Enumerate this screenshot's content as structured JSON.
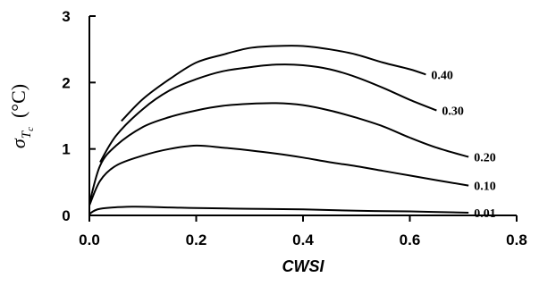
{
  "chart_data": {
    "type": "line",
    "xlabel": "CWSI",
    "ylabel": "σ_Tc (°C)",
    "ylabel_parts": {
      "symbol": "σ",
      "sub": "T",
      "subsub": "c",
      "unit": "(°C)"
    },
    "xlim": [
      0.0,
      0.8
    ],
    "ylim": [
      0,
      3
    ],
    "x_ticks": [
      0.0,
      0.2,
      0.4,
      0.6,
      0.8
    ],
    "x_tick_labels": [
      "0.0",
      "0.2",
      "0.4",
      "0.6",
      "0.8"
    ],
    "y_ticks": [
      0,
      1,
      2,
      3
    ],
    "y_tick_labels": [
      "0",
      "1",
      "2",
      "3"
    ],
    "grid": false,
    "series": [
      {
        "name": "0.40",
        "x": [
          0.06,
          0.1,
          0.15,
          0.2,
          0.25,
          0.3,
          0.35,
          0.4,
          0.45,
          0.5,
          0.55,
          0.6,
          0.63
        ],
        "y": [
          1.42,
          1.75,
          2.05,
          2.3,
          2.42,
          2.52,
          2.55,
          2.55,
          2.5,
          2.42,
          2.3,
          2.2,
          2.12
        ]
      },
      {
        "name": "0.30",
        "x": [
          0.02,
          0.05,
          0.1,
          0.15,
          0.2,
          0.25,
          0.3,
          0.35,
          0.4,
          0.45,
          0.5,
          0.55,
          0.6,
          0.65
        ],
        "y": [
          0.8,
          1.2,
          1.6,
          1.88,
          2.05,
          2.17,
          2.23,
          2.27,
          2.26,
          2.2,
          2.08,
          1.92,
          1.74,
          1.58
        ]
      },
      {
        "name": "0.20",
        "x": [
          0.0,
          0.02,
          0.05,
          0.1,
          0.15,
          0.2,
          0.25,
          0.3,
          0.35,
          0.4,
          0.45,
          0.5,
          0.55,
          0.6,
          0.65,
          0.71
        ],
        "y": [
          0.18,
          0.75,
          1.05,
          1.33,
          1.48,
          1.58,
          1.65,
          1.68,
          1.69,
          1.66,
          1.58,
          1.47,
          1.34,
          1.17,
          1.02,
          0.88
        ]
      },
      {
        "name": "0.10",
        "x": [
          0.0,
          0.02,
          0.05,
          0.1,
          0.15,
          0.2,
          0.25,
          0.3,
          0.35,
          0.4,
          0.45,
          0.5,
          0.55,
          0.6,
          0.65,
          0.71
        ],
        "y": [
          0.15,
          0.52,
          0.75,
          0.9,
          1.0,
          1.05,
          1.02,
          0.98,
          0.93,
          0.87,
          0.8,
          0.74,
          0.67,
          0.6,
          0.53,
          0.45
        ]
      },
      {
        "name": "0.01",
        "x": [
          0.0,
          0.02,
          0.08,
          0.15,
          0.2,
          0.3,
          0.4,
          0.5,
          0.6,
          0.71
        ],
        "y": [
          0.02,
          0.1,
          0.13,
          0.12,
          0.11,
          0.1,
          0.09,
          0.07,
          0.06,
          0.04
        ]
      }
    ]
  }
}
